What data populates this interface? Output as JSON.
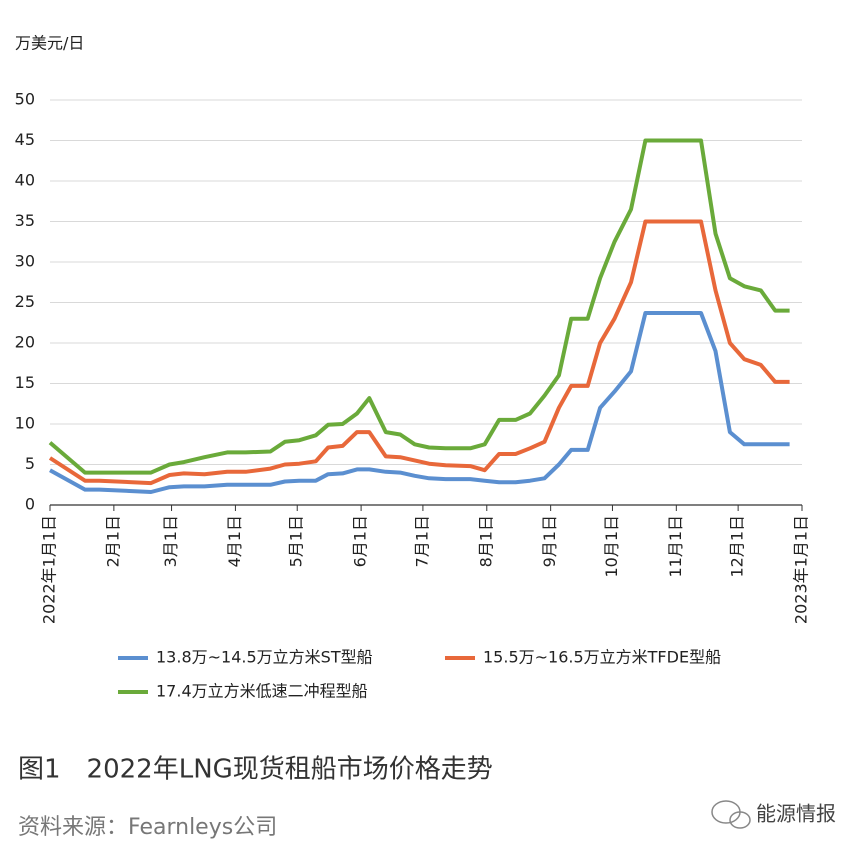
{
  "chart_data": {
    "type": "line",
    "y_unit": "万美元/日",
    "caption": "图1　2022年LNG现货租船市场价格走势",
    "source": "资料来源：Fearnleys公司",
    "watermark": "能源情报",
    "x": [
      "2022-01-01",
      "2022-01-18",
      "2022-01-25",
      "2022-02-19",
      "2022-02-28",
      "2022-03-07",
      "2022-03-17",
      "2022-03-28",
      "2022-04-06",
      "2022-04-18",
      "2022-04-25",
      "2022-05-02",
      "2022-05-10",
      "2022-05-16",
      "2022-05-23",
      "2022-05-30",
      "2022-06-05",
      "2022-06-13",
      "2022-06-20",
      "2022-06-27",
      "2022-07-04",
      "2022-07-12",
      "2022-07-24",
      "2022-07-31",
      "2022-08-07",
      "2022-08-15",
      "2022-08-22",
      "2022-08-29",
      "2022-09-05",
      "2022-09-11",
      "2022-09-19",
      "2022-09-25",
      "2022-10-02",
      "2022-10-10",
      "2022-10-17",
      "2022-11-13",
      "2022-11-20",
      "2022-11-27",
      "2022-12-04",
      "2022-12-12",
      "2022-12-19",
      "2022-12-26"
    ],
    "series": [
      {
        "name": "13.8万~14.5万立方米ST型船",
        "color": "#5b8fd0",
        "values": [
          4.3,
          1.9,
          1.9,
          1.6,
          2.2,
          2.3,
          2.3,
          2.5,
          2.5,
          2.5,
          2.9,
          3.0,
          3.0,
          3.8,
          3.9,
          4.4,
          4.4,
          4.1,
          4.0,
          3.6,
          3.3,
          3.2,
          3.2,
          3.0,
          2.8,
          2.8,
          3.0,
          3.3,
          5,
          6.8,
          6.8,
          12,
          14,
          16.5,
          23.7,
          23.7,
          19,
          9,
          7.5,
          7.5,
          7.5,
          7.5
        ]
      },
      {
        "name": "15.5万~16.5万立方米TFDE型船",
        "color": "#e8683a",
        "values": [
          5.8,
          3,
          3,
          2.7,
          3.7,
          3.9,
          3.8,
          4.1,
          4.1,
          4.5,
          5,
          5.1,
          5.4,
          7.1,
          7.3,
          9,
          9,
          6,
          5.9,
          5.5,
          5.1,
          4.9,
          4.8,
          4.3,
          6.3,
          6.3,
          7,
          7.8,
          12,
          14.7,
          14.7,
          20,
          23,
          27.5,
          35,
          35,
          26.5,
          20,
          18,
          17.3,
          15.2,
          15.2
        ]
      },
      {
        "name": "17.4万立方米低速二冲程型船",
        "color": "#6aaa3a",
        "values": [
          7.7,
          4,
          4,
          4,
          5,
          5.3,
          5.9,
          6.5,
          6.5,
          6.6,
          7.8,
          8,
          8.6,
          9.9,
          10,
          11.3,
          13.2,
          9,
          8.7,
          7.5,
          7.1,
          7,
          7,
          7.5,
          10.5,
          10.5,
          11.3,
          13.5,
          16,
          23,
          23,
          28,
          32.5,
          36.5,
          45,
          45,
          33.5,
          28,
          27,
          26.5,
          24,
          24
        ]
      }
    ],
    "xlim": [
      "2022-01-01",
      "2023-01-01"
    ],
    "xticks": [
      {
        "value": "2022-01-01",
        "label": "2022年1月1日"
      },
      {
        "value": "2022-02-01",
        "label": "2月1日"
      },
      {
        "value": "2022-03-01",
        "label": "3月1日"
      },
      {
        "value": "2022-04-01",
        "label": "4月1日"
      },
      {
        "value": "2022-05-01",
        "label": "5月1日"
      },
      {
        "value": "2022-06-01",
        "label": "6月1日"
      },
      {
        "value": "2022-07-01",
        "label": "7月1日"
      },
      {
        "value": "2022-08-01",
        "label": "8月1日"
      },
      {
        "value": "2022-09-01",
        "label": "9月1日"
      },
      {
        "value": "2022-10-01",
        "label": "10月1日"
      },
      {
        "value": "2022-11-01",
        "label": "11月1日"
      },
      {
        "value": "2022-12-01",
        "label": "12月1日"
      },
      {
        "value": "2023-01-01",
        "label": "2023年1月1日"
      }
    ],
    "ylim": [
      0,
      50
    ],
    "yticks": [
      0,
      5,
      10,
      15,
      20,
      25,
      30,
      35,
      40,
      45,
      50
    ],
    "grid": true
  }
}
